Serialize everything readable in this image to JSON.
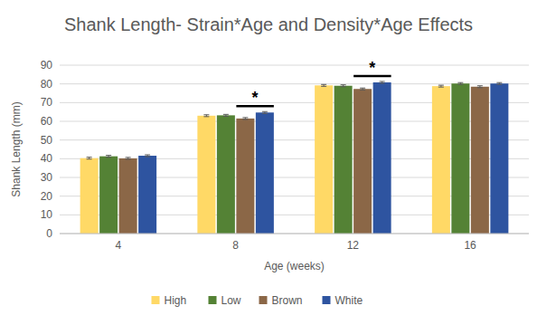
{
  "chart_data": {
    "type": "bar",
    "title": "Shank Length- Strain*Age and Density*Age Effects",
    "x_label": "Age (weeks)",
    "y_label": "Shank Length (mm)",
    "categories": [
      "4",
      "8",
      "12",
      "16"
    ],
    "series": [
      {
        "name": "High",
        "color": "#FFD966",
        "values": [
          40.3,
          63.0,
          79.2,
          78.8
        ],
        "errors": [
          0.5,
          0.5,
          0.5,
          0.5
        ]
      },
      {
        "name": "Low",
        "color": "#548235",
        "values": [
          41.3,
          63.2,
          79.0,
          80.2
        ],
        "errors": [
          0.5,
          0.5,
          0.5,
          0.5
        ]
      },
      {
        "name": "Brown",
        "color": "#8B6747",
        "values": [
          40.2,
          61.5,
          77.3,
          78.5
        ],
        "errors": [
          0.5,
          0.5,
          0.5,
          0.5
        ]
      },
      {
        "name": "White",
        "color": "#2E54A0",
        "values": [
          41.6,
          64.7,
          80.8,
          80.2
        ],
        "errors": [
          0.5,
          0.5,
          0.5,
          0.5
        ]
      }
    ],
    "annotations": [
      {
        "text": "*",
        "category": "8",
        "series": [
          "Brown",
          "White"
        ]
      },
      {
        "text": "*",
        "category": "12",
        "series": [
          "Brown",
          "White"
        ]
      }
    ],
    "ylim": [
      0,
      90
    ],
    "yticks": [
      0,
      10,
      20,
      30,
      40,
      50,
      60,
      70,
      80,
      90
    ],
    "grid": true,
    "legend": "bottom"
  }
}
